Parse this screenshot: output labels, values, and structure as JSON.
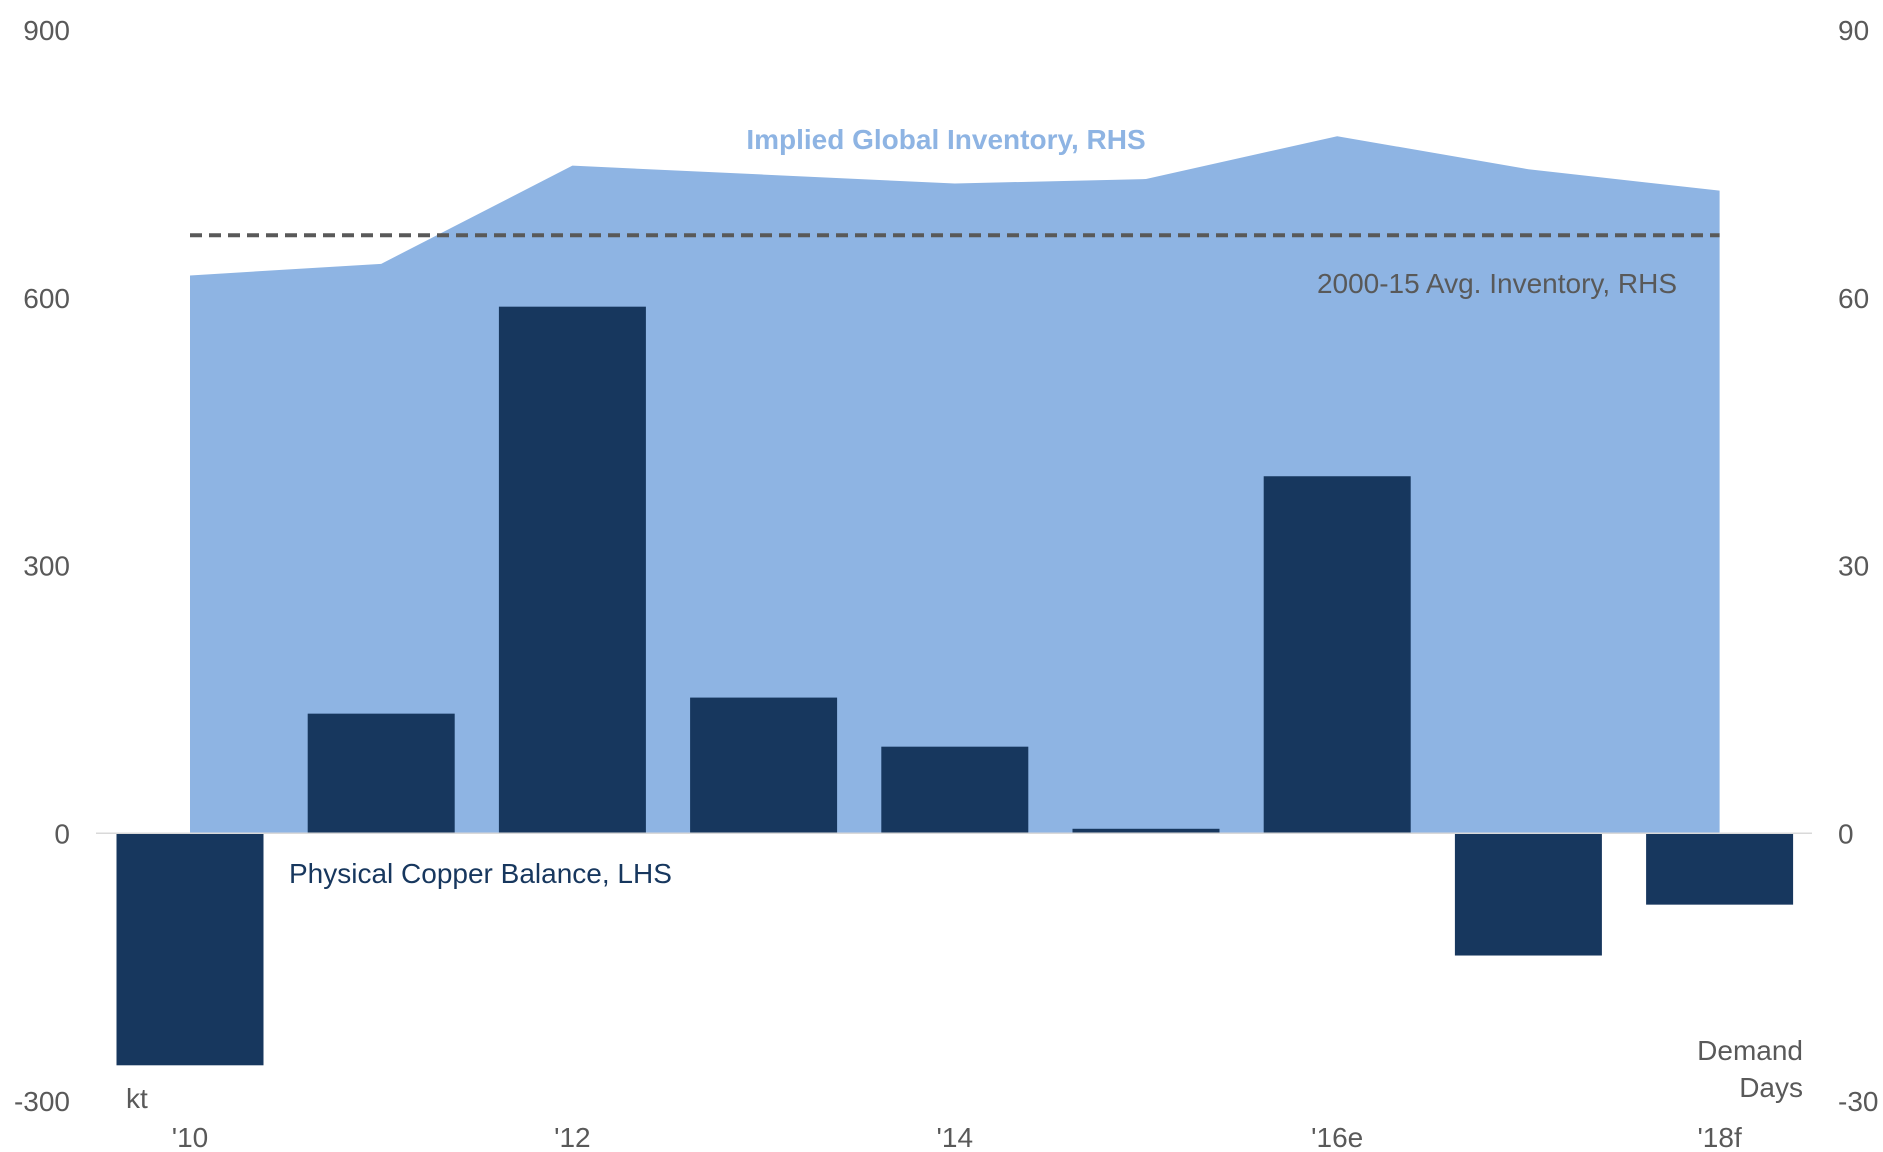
{
  "chart_data": {
    "type": "bar",
    "categories": [
      "2010",
      "2011",
      "2012",
      "2013",
      "2014",
      "2015",
      "2016e",
      "2017",
      "2018f"
    ],
    "x_tick_labels": [
      "'10",
      "'12",
      "'14",
      "'16e",
      "'18f"
    ],
    "x_tick_indices": [
      0,
      2,
      4,
      6,
      8
    ],
    "left_axis": {
      "unit": "kt",
      "ylim": [
        -300,
        900
      ],
      "ticks": [
        -300,
        0,
        300,
        600,
        900
      ],
      "tick_labels": [
        "-300",
        "0",
        "300",
        "600",
        "900"
      ]
    },
    "right_axis": {
      "unit": "Demand Days",
      "unit_lines": [
        "Demand",
        "Days"
      ],
      "ylim": [
        -30,
        90
      ],
      "ticks": [
        -30,
        0,
        30,
        60,
        90
      ],
      "tick_labels": [
        "-30",
        "0",
        "30",
        "60",
        "90"
      ]
    },
    "series": [
      {
        "name": "Physical Copper Balance, LHS",
        "type": "bar",
        "axis": "left",
        "color": "#17375e",
        "values": [
          -260,
          134,
          590,
          152,
          97,
          5,
          400,
          -137,
          -80
        ]
      },
      {
        "name": "Implied Global Inventory, RHS",
        "type": "area",
        "axis": "right",
        "color": "#8eb4e3",
        "values": [
          62.5,
          63.8,
          74.8,
          73.8,
          72.8,
          73.3,
          78.1,
          74.4,
          72.0
        ]
      },
      {
        "name": "2000-15 Avg. Inventory, RHS",
        "type": "line",
        "style": "dashed",
        "axis": "right",
        "color": "#595959",
        "value": 67.0
      }
    ],
    "annotations": {
      "inventory": "Implied Global Inventory, RHS",
      "average": "2000-15 Avg. Inventory, RHS",
      "balance": "Physical Copper Balance, LHS"
    },
    "grid": false
  }
}
